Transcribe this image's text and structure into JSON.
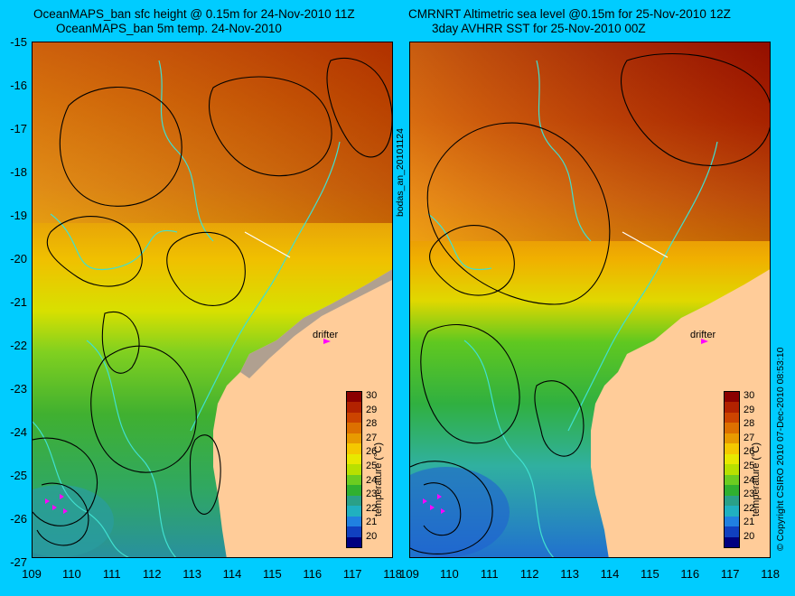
{
  "left_panel": {
    "title_line1": "OceanMAPS_ban sfc height @ 0.15m for 24-Nov-2010 11Z",
    "title_line2": "OceanMAPS_ban 5m temp. 24-Nov-2010"
  },
  "right_panel": {
    "title_line1": "CMRNRT Altimetric sea level  @0.15m  for 25-Nov-2010 12Z",
    "title_line2": "3day AVHRR SST for 25-Nov-2010 00Z"
  },
  "center_label": "bodas_an_20101124",
  "copyright": "© Copyright CSIRO 2010   07-Dec-2010 08:53:10",
  "drifter_label": "drifter",
  "y_axis_labels": [
    "-15",
    "-16",
    "-17",
    "-18",
    "-19",
    "-20",
    "-21",
    "-22",
    "-23",
    "-24",
    "-25",
    "-26",
    "-27"
  ],
  "x_axis_labels": [
    "109",
    "110",
    "111",
    "112",
    "113",
    "114",
    "115",
    "116",
    "117",
    "118"
  ],
  "colorbar": {
    "title": "temperature (°C)",
    "ticks": [
      "30",
      "29",
      "28",
      "27",
      "26",
      "25",
      "24",
      "23",
      "22",
      "21",
      "20"
    ],
    "colors": [
      "#8b0000",
      "#b22200",
      "#cc4400",
      "#dd7000",
      "#e89a00",
      "#f5c800",
      "#e8e800",
      "#b8e000",
      "#6ccc20",
      "#30b030",
      "#2aa088",
      "#20b0c0",
      "#2080e0",
      "#1040c0",
      "#000080"
    ]
  },
  "colors": {
    "background": "#00ccff",
    "land": "#ffcc99",
    "contour_black": "#000000",
    "contour_cyan": "#40e0d0",
    "drifter": "#ff00ff"
  }
}
